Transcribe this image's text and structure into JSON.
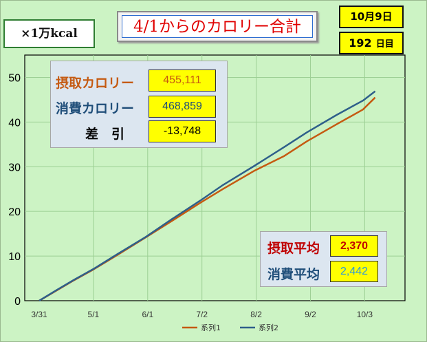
{
  "title": "4/1からのカロリー合計",
  "unit_label": "×1万kcal",
  "date_label": "10月9日",
  "day_count": "192",
  "day_unit": "日目",
  "summary": {
    "intake_label": "摂取カロリー",
    "intake_value": "455,111",
    "expend_label": "消費カロリー",
    "expend_value": "468,859",
    "diff_label": "差　引",
    "diff_value": "-13,748"
  },
  "averages": {
    "intake_label": "摂取平均",
    "intake_value": "2,370",
    "expend_label": "消費平均",
    "expend_value": "2,442"
  },
  "colors": {
    "series1": "#c55a11",
    "series2": "#2e5f8a",
    "background": "#ccf3c4"
  },
  "chart_data": {
    "type": "line",
    "x_ticks": [
      "3/31",
      "5/1",
      "6/1",
      "7/2",
      "8/2",
      "9/2",
      "10/3"
    ],
    "y_ticks": [
      "0",
      "10",
      "20",
      "30",
      "40",
      "50"
    ],
    "ylim": [
      0,
      55
    ],
    "grid": true,
    "legend": "bottom",
    "x_domain_days": [
      0,
      200
    ],
    "series": [
      {
        "name": "系列1",
        "points": [
          [
            0,
            0
          ],
          [
            10,
            2.3
          ],
          [
            20,
            4.6
          ],
          [
            31,
            7.0
          ],
          [
            45,
            10.3
          ],
          [
            61,
            14.2
          ],
          [
            76,
            17.9
          ],
          [
            92,
            21.9
          ],
          [
            105,
            25.0
          ],
          [
            123,
            29.1
          ],
          [
            140,
            32.4
          ],
          [
            153,
            35.7
          ],
          [
            170,
            39.5
          ],
          [
            185,
            42.8
          ],
          [
            192,
            45.5
          ]
        ]
      },
      {
        "name": "系列2",
        "points": [
          [
            0,
            0
          ],
          [
            10,
            2.4
          ],
          [
            20,
            4.7
          ],
          [
            31,
            7.1
          ],
          [
            45,
            10.5
          ],
          [
            61,
            14.3
          ],
          [
            76,
            18.3
          ],
          [
            92,
            22.4
          ],
          [
            105,
            25.9
          ],
          [
            123,
            30.2
          ],
          [
            140,
            34.4
          ],
          [
            153,
            37.7
          ],
          [
            170,
            41.6
          ],
          [
            185,
            44.8
          ],
          [
            192,
            46.9
          ]
        ]
      }
    ]
  }
}
